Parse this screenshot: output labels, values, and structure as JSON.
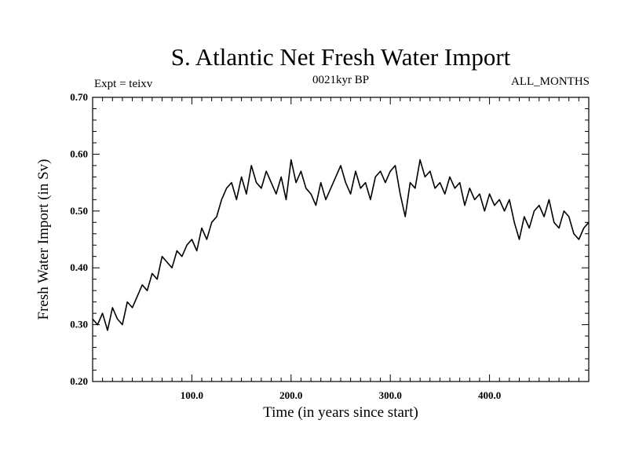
{
  "chart_data": {
    "type": "line",
    "title": "S. Atlantic Net Fresh Water Import",
    "subtitle_left": "Expt = teixv",
    "subtitle_center": "0021kyr BP",
    "subtitle_right": "ALL_MONTHS",
    "xlabel": "Time (in years since start)",
    "ylabel": "Fresh Water Import (in Sv)",
    "xlim": [
      0,
      500
    ],
    "ylim": [
      0.2,
      0.7
    ],
    "x_ticks": [
      {
        "value": 100,
        "label": "100.0"
      },
      {
        "value": 200,
        "label": "200.0"
      },
      {
        "value": 300,
        "label": "300.0"
      },
      {
        "value": 400,
        "label": "400.0"
      }
    ],
    "y_ticks": [
      {
        "value": 0.2,
        "label": "0.20"
      },
      {
        "value": 0.3,
        "label": "0.30"
      },
      {
        "value": 0.4,
        "label": "0.40"
      },
      {
        "value": 0.5,
        "label": "0.50"
      },
      {
        "value": 0.6,
        "label": "0.60"
      },
      {
        "value": 0.7,
        "label": "0.70"
      }
    ],
    "grid": false,
    "legend": "none",
    "line_color": "#000000",
    "series": [
      {
        "x": [
          0,
          5,
          10,
          15,
          20,
          25,
          30,
          35,
          40,
          45,
          50,
          55,
          60,
          65,
          70,
          75,
          80,
          85,
          90,
          95,
          100,
          105,
          110,
          115,
          120,
          125,
          130,
          135,
          140,
          145,
          150,
          155,
          160,
          165,
          170,
          175,
          180,
          185,
          190,
          195,
          200,
          205,
          210,
          215,
          220,
          225,
          230,
          235,
          240,
          245,
          250,
          255,
          260,
          265,
          270,
          275,
          280,
          285,
          290,
          295,
          300,
          305,
          310,
          315,
          320,
          325,
          330,
          335,
          340,
          345,
          350,
          355,
          360,
          365,
          370,
          375,
          380,
          385,
          390,
          395,
          400,
          405,
          410,
          415,
          420,
          425,
          430,
          435,
          440,
          445,
          450,
          455,
          460,
          465,
          470,
          475,
          480,
          485,
          490,
          495,
          500
        ],
        "values": [
          0.31,
          0.3,
          0.32,
          0.29,
          0.33,
          0.31,
          0.3,
          0.34,
          0.33,
          0.35,
          0.37,
          0.36,
          0.39,
          0.38,
          0.42,
          0.41,
          0.4,
          0.43,
          0.42,
          0.44,
          0.45,
          0.43,
          0.47,
          0.45,
          0.48,
          0.49,
          0.52,
          0.54,
          0.55,
          0.52,
          0.56,
          0.53,
          0.58,
          0.55,
          0.54,
          0.57,
          0.55,
          0.53,
          0.56,
          0.52,
          0.59,
          0.55,
          0.57,
          0.54,
          0.53,
          0.51,
          0.55,
          0.52,
          0.54,
          0.56,
          0.58,
          0.55,
          0.53,
          0.57,
          0.54,
          0.55,
          0.52,
          0.56,
          0.57,
          0.55,
          0.57,
          0.58,
          0.53,
          0.49,
          0.55,
          0.54,
          0.59,
          0.56,
          0.57,
          0.54,
          0.55,
          0.53,
          0.56,
          0.54,
          0.55,
          0.51,
          0.54,
          0.52,
          0.53,
          0.5,
          0.53,
          0.51,
          0.52,
          0.5,
          0.52,
          0.48,
          0.45,
          0.49,
          0.47,
          0.5,
          0.51,
          0.49,
          0.52,
          0.48,
          0.47,
          0.5,
          0.49,
          0.46,
          0.45,
          0.47,
          0.48
        ]
      }
    ]
  }
}
